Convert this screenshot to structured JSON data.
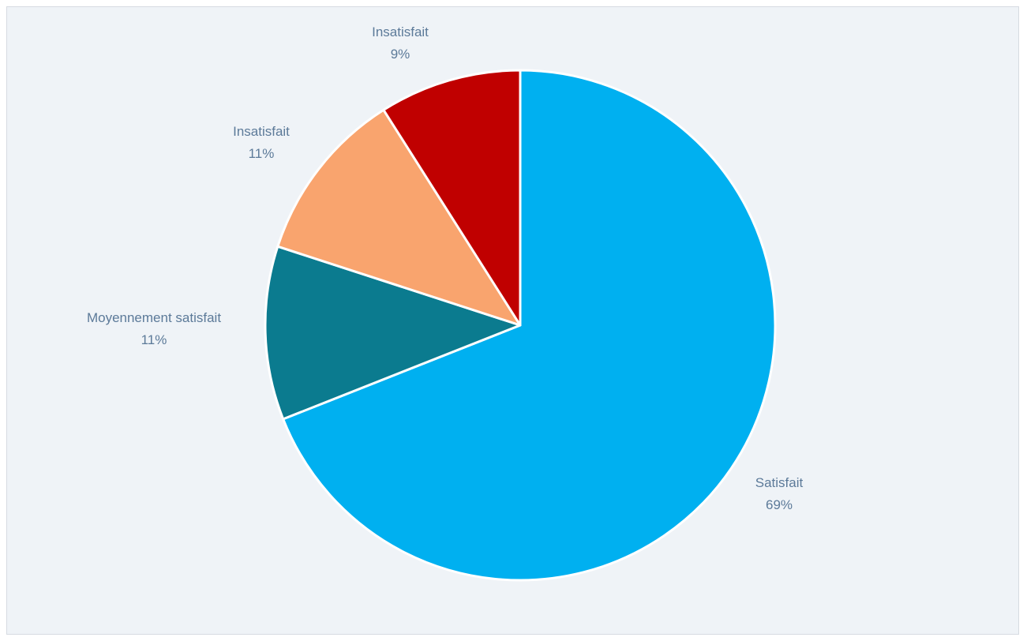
{
  "chart_data": {
    "type": "pie",
    "title": "",
    "start_angle_deg": 0,
    "direction": "clockwise",
    "slices": [
      {
        "label": "Satisfait",
        "value": 69,
        "display": "69%",
        "color": "#00b0f0"
      },
      {
        "label": "Moyennement satisfait",
        "value": 11,
        "display": "11%",
        "color": "#0b7b8f"
      },
      {
        "label": "Insatisfait",
        "value": 11,
        "display": "11%",
        "color": "#f9a46e"
      },
      {
        "label": "Insatisfait",
        "value": 9,
        "display": "9%",
        "color": "#c00000"
      }
    ],
    "legend": "none",
    "data_labels": "outside"
  },
  "colors": {
    "background": "#eff3f7",
    "label_text": "#5c7a99",
    "slice_border": "#ffffff"
  }
}
